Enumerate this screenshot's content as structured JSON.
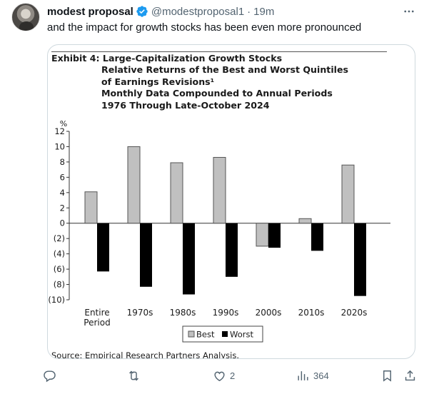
{
  "tweet": {
    "display_name": "modest proposal",
    "handle": "@modestproposal1",
    "separator": "·",
    "time": "19m",
    "text": "and the impact for growth stocks has been even more pronounced",
    "more_icon": "more-horizontal-icon",
    "verified_icon": "verified-badge-icon",
    "accent_color": "#1d9bf0"
  },
  "exhibit": {
    "title_lines": [
      "Exhibit 4: Large-Capitalization Growth Stocks",
      "Relative Returns of the Best and Worst Quintiles",
      "of Earnings Revisions¹",
      "Monthly Data Compounded to Annual Periods",
      "1976 Through Late-October 2024"
    ],
    "source": "Source: Empirical Research Partners Analysis."
  },
  "chart_data": {
    "type": "bar",
    "unit_label": "%",
    "categories": [
      "Entire Period",
      "1970s",
      "1980s",
      "1990s",
      "2000s",
      "2010s",
      "2020s"
    ],
    "category_lines": [
      [
        "Entire",
        "Period"
      ],
      [
        "1970s"
      ],
      [
        "1980s"
      ],
      [
        "1990s"
      ],
      [
        "2000s"
      ],
      [
        "2010s"
      ],
      [
        "2020s"
      ]
    ],
    "series": [
      {
        "name": "Best",
        "color": "#c0c0c0",
        "values": [
          4.1,
          10.0,
          7.9,
          8.6,
          -3.0,
          0.6,
          7.6
        ]
      },
      {
        "name": "Worst",
        "color": "#000000",
        "values": [
          -6.3,
          -8.3,
          -9.3,
          -7.0,
          -3.2,
          -3.6,
          -9.5
        ]
      }
    ],
    "ylim": [
      -10,
      12
    ],
    "yticks": [
      12,
      10,
      8,
      6,
      4,
      2,
      0,
      -2,
      -4,
      -6,
      -8,
      -10
    ],
    "ytick_labels": [
      "12",
      "10",
      "8",
      "6",
      "4",
      "2",
      "0",
      "(2)",
      "(4)",
      "(6)",
      "(8)",
      "(10)"
    ],
    "legend_position": "bottom-center",
    "grid": false
  },
  "actions": {
    "reply": {
      "icon": "reply-icon",
      "count": ""
    },
    "retweet": {
      "icon": "retweet-icon",
      "count": ""
    },
    "like": {
      "icon": "heart-icon",
      "count": "2"
    },
    "views": {
      "icon": "views-chart-icon",
      "count": "364"
    },
    "bookmark": {
      "icon": "bookmark-icon",
      "count": ""
    },
    "share": {
      "icon": "share-icon",
      "count": ""
    }
  }
}
